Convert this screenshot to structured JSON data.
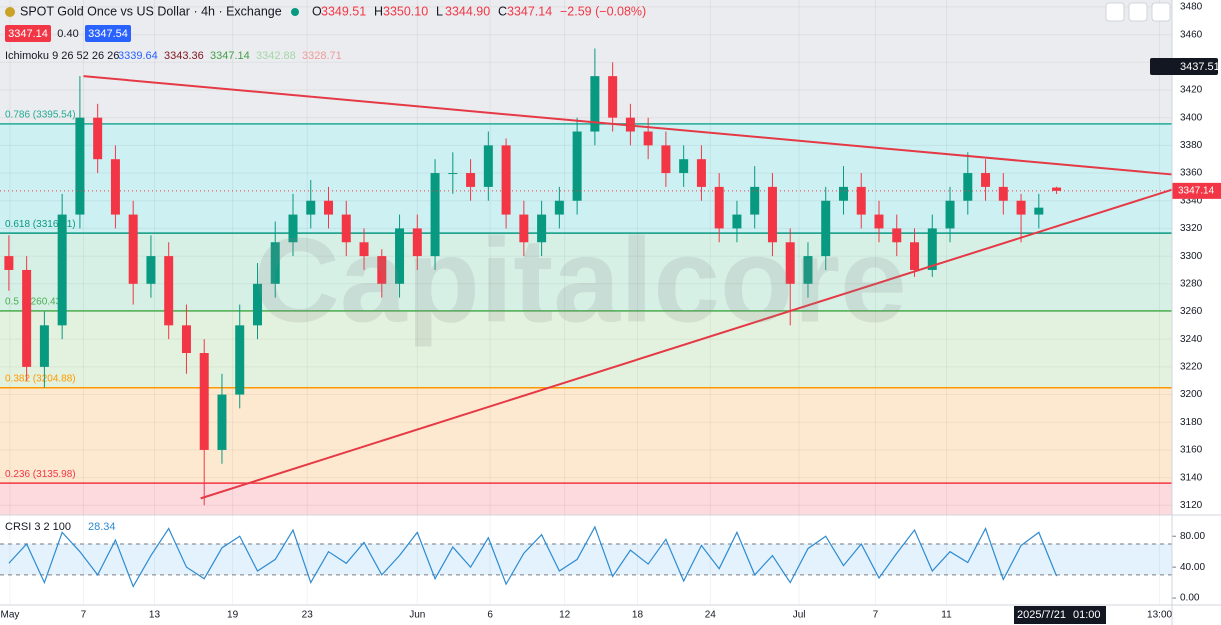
{
  "header": {
    "title": "SPOT Gold Once vs US Dollar · 4h · Exchange",
    "ohlc": [
      {
        "label": "O",
        "value": "3349.51"
      },
      {
        "label": "H",
        "value": "3350.10"
      },
      {
        "label": "L",
        "value": "3344.90"
      },
      {
        "label": "C",
        "value": "3347.14"
      }
    ],
    "change": "−2.59 (−0.08%)",
    "sell": "3347.14",
    "spread": "0.40",
    "buy": "3347.54",
    "ichimoku_label": "Ichimoku 9 26 52 26 26",
    "ichimoku_values": [
      {
        "value": "3339.64",
        "color": "#2962ff"
      },
      {
        "value": "3343.36",
        "color": "#801922"
      },
      {
        "value": "3347.14",
        "color": "#43a047"
      },
      {
        "value": "3342.88",
        "color": "#a5d6a7"
      },
      {
        "value": "3328.71",
        "color": "#ef9a9a"
      }
    ],
    "crosshair_price": "3437.51",
    "last_price": "3347.14",
    "time_label": "2025/7/21",
    "time_label_hour": "01:00",
    "watermark": "Capitalcore"
  },
  "chart_data": [
    {
      "type": "candlestick",
      "xlim": [
        0,
        66
      ],
      "ylim": [
        3113,
        3485
      ],
      "xticks": [
        {
          "value": 0.56,
          "label": "May"
        },
        {
          "value": 4.7,
          "label": "7"
        },
        {
          "value": 8.7,
          "label": "13"
        },
        {
          "value": 13.1,
          "label": "19"
        },
        {
          "value": 17.3,
          "label": "23"
        },
        {
          "value": 23.5,
          "label": "Jun"
        },
        {
          "value": 27.6,
          "label": "6"
        },
        {
          "value": 31.8,
          "label": "12"
        },
        {
          "value": 35.9,
          "label": "18"
        },
        {
          "value": 40,
          "label": "24"
        },
        {
          "value": 45,
          "label": "Jul"
        },
        {
          "value": 49.3,
          "label": "7"
        },
        {
          "value": 53.3,
          "label": "11"
        },
        {
          "value": 65.3,
          "label": "13:00"
        }
      ],
      "yticks": [
        3120,
        3140,
        3160,
        3180,
        3200,
        3220,
        3240,
        3260,
        3280,
        3300,
        3320,
        3340,
        3360,
        3380,
        3400,
        3420,
        3440,
        3460,
        3480
      ],
      "up_color": "#089981",
      "down_color": "#f23645",
      "open": [
        3300,
        3290,
        3220,
        3250,
        3330,
        3400,
        3370,
        3330,
        3280,
        3300,
        3250,
        3230,
        3160,
        3200,
        3250,
        3280,
        3310,
        3330,
        3340,
        3330,
        3310,
        3300,
        3280,
        3320,
        3300,
        3360,
        3360,
        3350,
        3380,
        3330,
        3310,
        3330,
        3340,
        3390,
        3430,
        3400,
        3390,
        3380,
        3360,
        3370,
        3350,
        3320,
        3330,
        3350,
        3310,
        3280,
        3300,
        3340,
        3350,
        3330,
        3320,
        3310,
        3290,
        3320,
        3340,
        3360,
        3350,
        3340,
        3330,
        3349.51
      ],
      "high": [
        3315,
        3300,
        3260,
        3345,
        3430,
        3410,
        3380,
        3340,
        3315,
        3310,
        3265,
        3240,
        3215,
        3265,
        3295,
        3325,
        3345,
        3355,
        3350,
        3340,
        3320,
        3305,
        3330,
        3330,
        3370,
        3375,
        3370,
        3390,
        3385,
        3340,
        3340,
        3350,
        3400,
        3450,
        3440,
        3410,
        3400,
        3390,
        3380,
        3380,
        3360,
        3340,
        3365,
        3360,
        3320,
        3310,
        3350,
        3365,
        3360,
        3340,
        3330,
        3320,
        3330,
        3350,
        3375,
        3370,
        3360,
        3345,
        3345,
        3350.1
      ],
      "low": [
        3275,
        3210,
        3205,
        3240,
        3320,
        3360,
        3320,
        3265,
        3270,
        3240,
        3215,
        3120,
        3150,
        3190,
        3240,
        3270,
        3300,
        3320,
        3320,
        3300,
        3290,
        3270,
        3270,
        3290,
        3290,
        3345,
        3340,
        3340,
        3320,
        3300,
        3300,
        3320,
        3330,
        3380,
        3390,
        3380,
        3370,
        3350,
        3350,
        3340,
        3310,
        3310,
        3320,
        3300,
        3250,
        3270,
        3290,
        3330,
        3320,
        3310,
        3300,
        3285,
        3285,
        3310,
        3330,
        3340,
        3330,
        3310,
        3320,
        3344.9
      ],
      "close": [
        3290,
        3220,
        3250,
        3330,
        3400,
        3370,
        3330,
        3280,
        3300,
        3250,
        3230,
        3160,
        3200,
        3250,
        3280,
        3310,
        3330,
        3340,
        3330,
        3310,
        3300,
        3280,
        3320,
        3300,
        3360,
        3360,
        3350,
        3380,
        3330,
        3310,
        3330,
        3340,
        3390,
        3430,
        3400,
        3390,
        3380,
        3360,
        3370,
        3350,
        3320,
        3330,
        3350,
        3310,
        3280,
        3300,
        3340,
        3350,
        3330,
        3320,
        3310,
        3290,
        3320,
        3340,
        3360,
        3350,
        3340,
        3330,
        3335,
        3347.14
      ],
      "fib_levels": [
        {
          "value": 3395.54,
          "label": "0.786 (3395.54)",
          "color": "#22ab94",
          "fill": "#cdf0f2"
        },
        {
          "value": 3316.61,
          "label": "0.618 (3316.61)",
          "color": "#089981",
          "fill": "#d6f0e6"
        },
        {
          "value": 3260.43,
          "label": "0.5 (3260.43)",
          "color": "#4caf50",
          "fill": "#e3f2de"
        },
        {
          "value": 3204.88,
          "label": "0.382 (3204.88)",
          "color": "#ff9800",
          "fill": "#fde9cf"
        },
        {
          "value": 3135.98,
          "label": "0.236 (3135.98)",
          "color": "#f23645",
          "fill": "#fcdadd"
        }
      ],
      "trendlines": [
        {
          "x": [
            4.7,
            66
          ],
          "y": [
            3430,
            3359
          ],
          "color": "#e53945"
        },
        {
          "x": [
            11.3,
            66
          ],
          "y": [
            3125,
            3348
          ],
          "color": "#e53945"
        }
      ]
    },
    {
      "type": "line",
      "title": "CRSI 3 2 100",
      "value_label": "28.34",
      "color": "#2e8bd1",
      "ylim": [
        -9,
        101
      ],
      "yticks": [
        {
          "value": 0,
          "label": "0.00"
        },
        {
          "value": 40,
          "label": "40.00"
        },
        {
          "value": 80,
          "label": "80.00"
        }
      ],
      "bands": [
        30,
        70
      ],
      "values": [
        45,
        70,
        20,
        85,
        60,
        30,
        75,
        15,
        55,
        90,
        40,
        25,
        65,
        80,
        35,
        50,
        88,
        20,
        60,
        45,
        72,
        30,
        55,
        85,
        25,
        66,
        40,
        78,
        18,
        58,
        82,
        35,
        50,
        92,
        28,
        62,
        44,
        76,
        22,
        68,
        38,
        85,
        30,
        55,
        20,
        64,
        80,
        42,
        70,
        26,
        58,
        88,
        35,
        60,
        46,
        90,
        24,
        68,
        85,
        28.34
      ]
    }
  ]
}
